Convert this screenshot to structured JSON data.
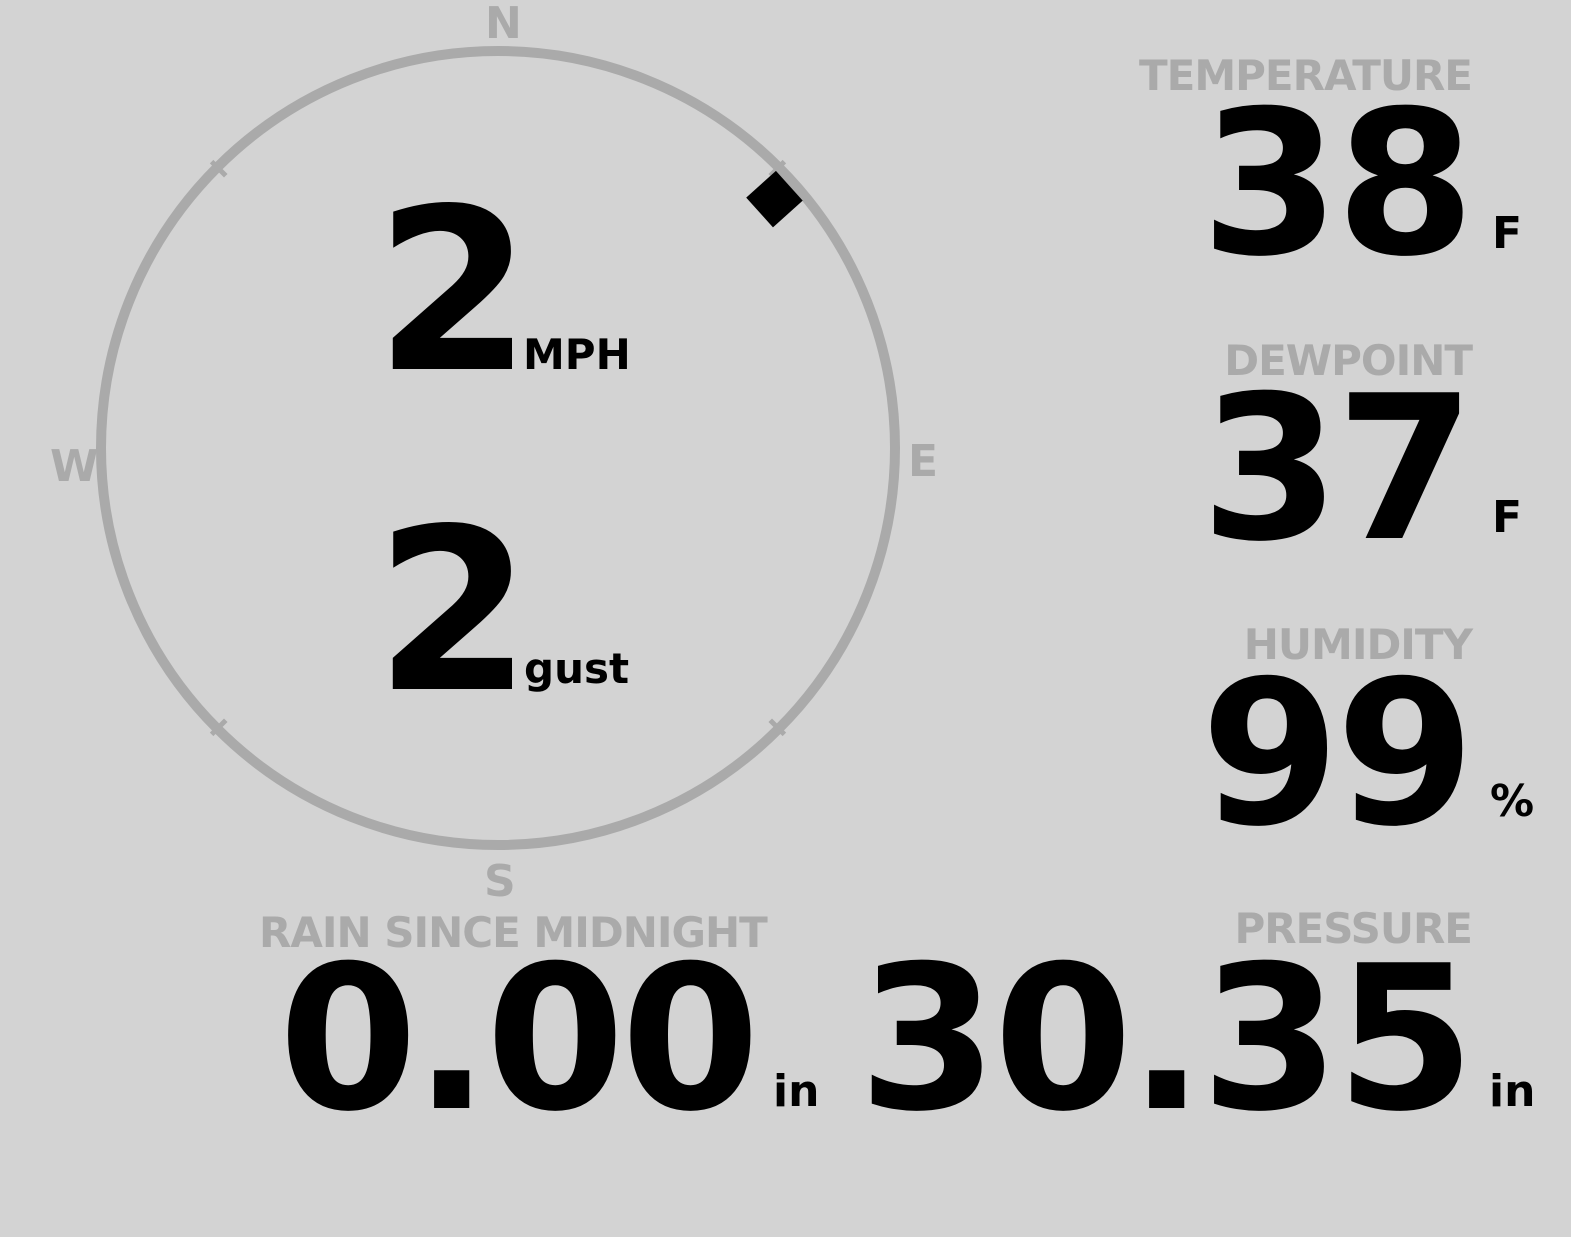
{
  "wind": {
    "speed": "2",
    "speed_unit": "MPH",
    "gust": "2",
    "gust_unit": "gust",
    "direction_degrees": 48,
    "compass": {
      "n": "N",
      "e": "E",
      "s": "S",
      "w": "W"
    }
  },
  "temperature": {
    "label": "TEMPERATURE",
    "value": "38",
    "unit": "F"
  },
  "dewpoint": {
    "label": "DEWPOINT",
    "value": "37",
    "unit": "F"
  },
  "humidity": {
    "label": "HUMIDITY",
    "value": "99",
    "unit": "%"
  },
  "rain": {
    "label": "RAIN SINCE MIDNIGHT",
    "value": "0.00",
    "unit": "in"
  },
  "pressure": {
    "label": "PRESSURE",
    "value": "30.35",
    "unit": "in"
  },
  "colors": {
    "background": "#d3d3d3",
    "label": "#aaaaaa",
    "value": "#000000"
  }
}
